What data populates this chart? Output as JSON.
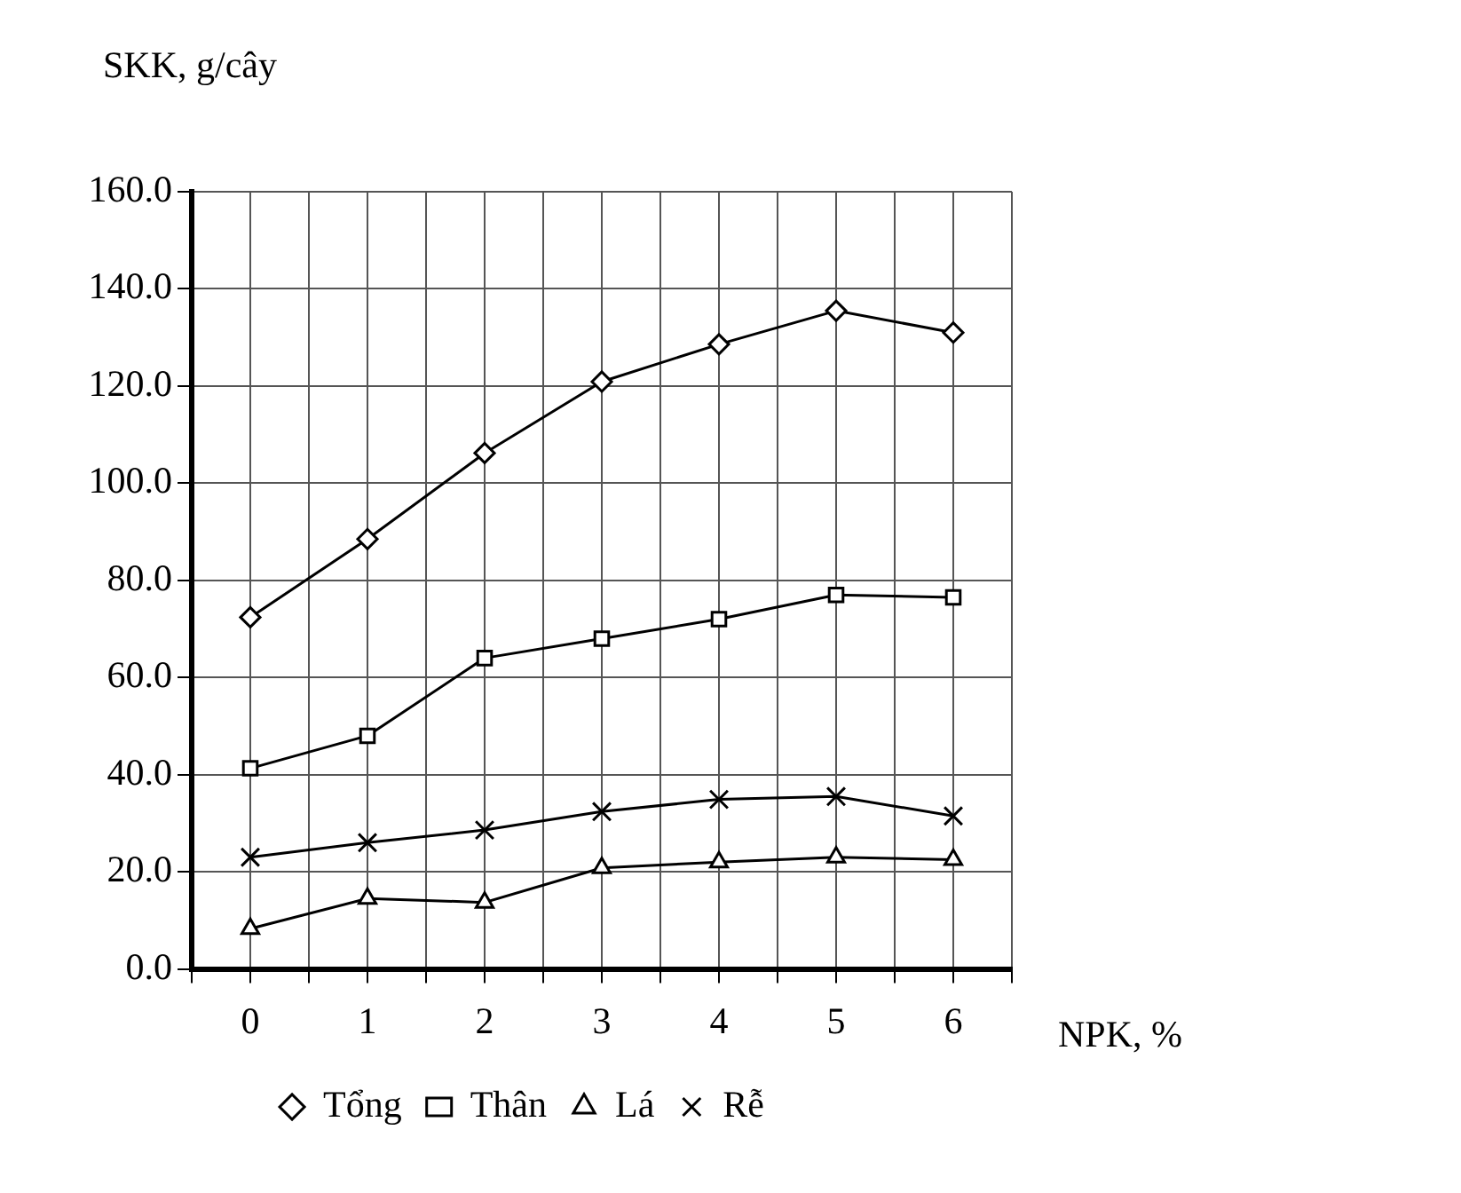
{
  "chart_data": {
    "type": "line",
    "ylabel": "SKK, g/cây",
    "xlabel": "NPK, %",
    "x": [
      0,
      1,
      2,
      3,
      4,
      5,
      6
    ],
    "xlim": [
      -0.5,
      6.5
    ],
    "xticks": [
      {
        "value": -0.5,
        "label": null
      },
      0,
      {
        "value": 0.5,
        "label": null
      },
      1,
      {
        "value": 1.5,
        "label": null
      },
      2,
      {
        "value": 2.5,
        "label": null
      },
      3,
      {
        "value": 3.5,
        "label": null
      },
      4,
      {
        "value": 4.5,
        "label": null
      },
      5,
      {
        "value": 5.5,
        "label": null
      },
      6,
      {
        "value": 6.5,
        "label": null
      }
    ],
    "ylim": [
      0,
      160
    ],
    "yticks": [
      {
        "value": 0,
        "label": "0.0"
      },
      {
        "value": 20,
        "label": "20.0"
      },
      {
        "value": 40,
        "label": "40.0"
      },
      {
        "value": 60,
        "label": "60.0"
      },
      {
        "value": 80,
        "label": "80.0"
      },
      {
        "value": 100,
        "label": "100.0"
      },
      {
        "value": 120,
        "label": "120.0"
      },
      {
        "value": 140,
        "label": "140.0"
      },
      {
        "value": 160,
        "label": "160.0"
      }
    ],
    "grid": true,
    "legend": "bottom",
    "line_style": "solid",
    "series": [
      {
        "name": "Tổng",
        "color": "#000000",
        "marker": "diamond",
        "values": [
          72.4,
          88.5,
          106.2,
          120.9,
          128.6,
          135.5,
          131.0
        ]
      },
      {
        "name": "Thân",
        "color": "#000000",
        "marker": "square",
        "values": [
          41.3,
          48.0,
          64.0,
          68.0,
          72.0,
          77.0,
          76.5
        ]
      },
      {
        "name": "Lá",
        "color": "#000000",
        "marker": "triangle",
        "values": [
          8.3,
          14.5,
          13.7,
          20.8,
          22.0,
          23.0,
          22.5
        ]
      },
      {
        "name": "Rễ",
        "color": "#000000",
        "marker": "cross",
        "values": [
          23.0,
          26.0,
          28.6,
          32.4,
          34.9,
          35.5,
          31.5
        ]
      }
    ]
  }
}
